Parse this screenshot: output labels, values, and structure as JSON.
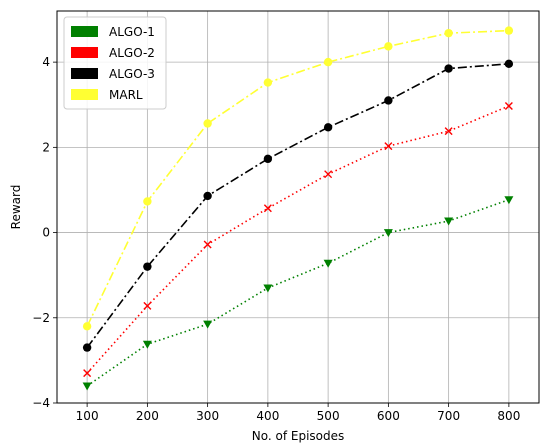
{
  "chart_data": {
    "type": "line",
    "xlabel": "No. of Episodes",
    "ylabel": "Reward",
    "x": [
      100,
      200,
      300,
      400,
      500,
      600,
      700,
      800
    ],
    "xticks": [
      100,
      200,
      300,
      400,
      500,
      600,
      700,
      800
    ],
    "yticks": [
      -4,
      -2,
      0,
      2,
      4
    ],
    "xlim": [
      50,
      850
    ],
    "ylim": [
      -4,
      5.2
    ],
    "grid": true,
    "legend_position": "top-left",
    "series": [
      {
        "name": "ALGO-1",
        "color": "#008000",
        "linestyle": "dotted",
        "marker": "triangle-down",
        "values": [
          -3.6,
          -2.62,
          -2.15,
          -1.3,
          -0.72,
          0.0,
          0.27,
          0.77
        ]
      },
      {
        "name": "ALGO-2",
        "color": "#ff0000",
        "linestyle": "dotted",
        "marker": "x",
        "values": [
          -3.3,
          -1.72,
          -0.28,
          0.57,
          1.37,
          2.03,
          2.38,
          2.97
        ]
      },
      {
        "name": "ALGO-3",
        "color": "#000000",
        "linestyle": "dashdot",
        "marker": "circle",
        "values": [
          -2.7,
          -0.8,
          0.86,
          1.73,
          2.47,
          3.1,
          3.85,
          3.96
        ]
      },
      {
        "name": "MARL",
        "color": "#ffff33",
        "linestyle": "dashdot",
        "marker": "circle",
        "values": [
          -2.2,
          0.73,
          2.56,
          3.52,
          4.0,
          4.37,
          4.68,
          4.74
        ]
      }
    ]
  }
}
